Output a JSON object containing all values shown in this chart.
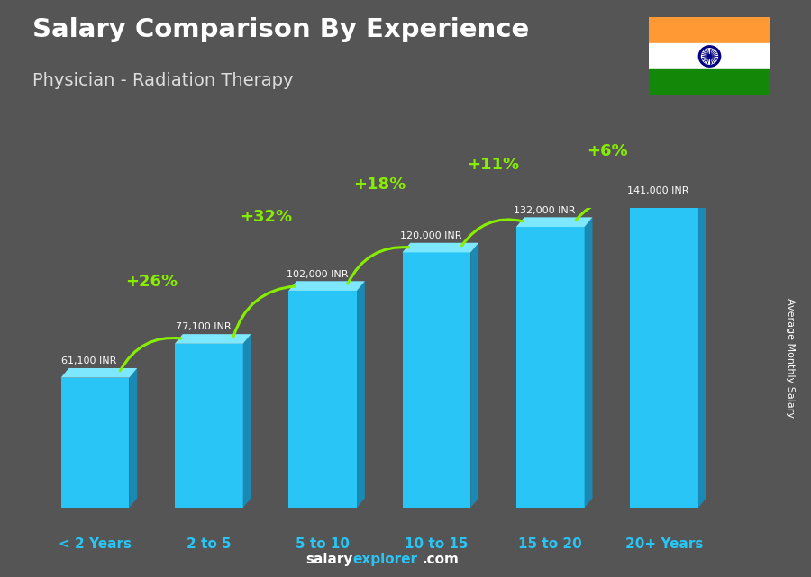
{
  "title": "Salary Comparison By Experience",
  "subtitle": "Physician - Radiation Therapy",
  "categories": [
    "< 2 Years",
    "2 to 5",
    "5 to 10",
    "10 to 15",
    "15 to 20",
    "20+ Years"
  ],
  "values": [
    61100,
    77100,
    102000,
    120000,
    132000,
    141000
  ],
  "value_labels": [
    "61,100 INR",
    "77,100 INR",
    "102,000 INR",
    "120,000 INR",
    "132,000 INR",
    "141,000 INR"
  ],
  "pct_changes": [
    "+26%",
    "+32%",
    "+18%",
    "+11%",
    "+6%"
  ],
  "bar_front": "#29c5f6",
  "bar_top": "#7de8ff",
  "bar_right": "#1a8ab5",
  "bg_color": "#555555",
  "title_color": "#ffffff",
  "subtitle_color": "#dddddd",
  "value_color": "#ffffff",
  "pct_color": "#88ee00",
  "xtick_color": "#29c5f6",
  "ylabel": "Average Monthly Salary",
  "footer_salary": "salary",
  "footer_explorer": "explorer",
  "footer_com": ".com",
  "footer_color_salary": "#ffffff",
  "footer_color_explorer": "#29c5f6",
  "footer_color_com": "#ffffff"
}
